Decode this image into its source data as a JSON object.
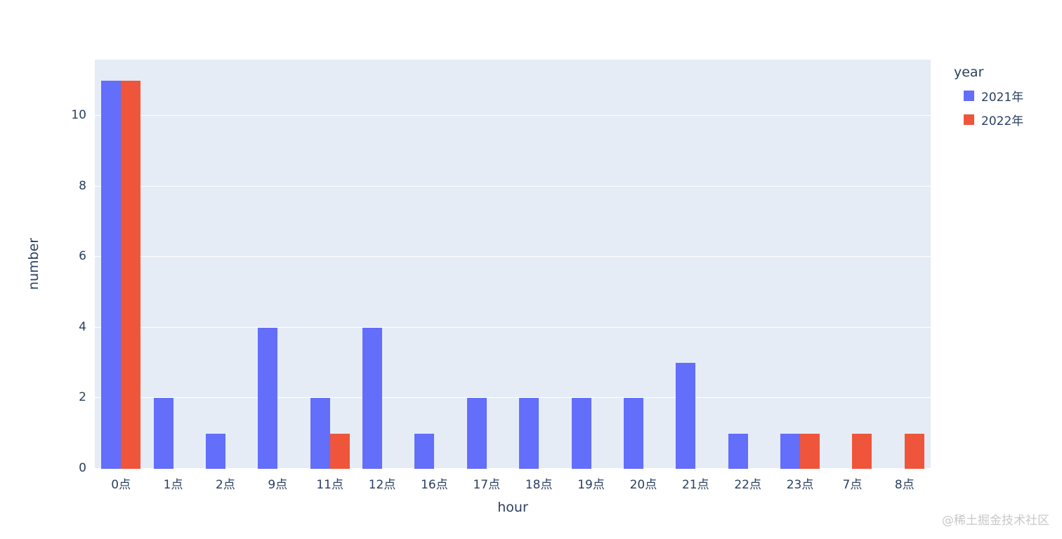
{
  "chart_data": {
    "type": "bar",
    "title": "",
    "xlabel": "hour",
    "ylabel": "number",
    "legend_title": "year",
    "categories": [
      "0点",
      "1点",
      "2点",
      "9点",
      "11点",
      "12点",
      "16点",
      "17点",
      "18点",
      "19点",
      "20点",
      "21点",
      "22点",
      "23点",
      "7点",
      "8点"
    ],
    "series": [
      {
        "name": "2021年",
        "color": "#636EFA",
        "values": [
          11,
          2,
          1,
          4,
          2,
          4,
          1,
          2,
          2,
          2,
          2,
          3,
          1,
          1,
          0,
          0
        ]
      },
      {
        "name": "2022年",
        "color": "#EF553B",
        "values": [
          11,
          0,
          0,
          0,
          1,
          0,
          0,
          0,
          0,
          0,
          0,
          0,
          0,
          1,
          1,
          1
        ]
      }
    ],
    "yticks": [
      0,
      2,
      4,
      6,
      8,
      10
    ],
    "ylim": [
      0,
      11.6
    ],
    "grid": "on",
    "legend_position": "top-right",
    "plot_bg_color": "#e5ecf6",
    "grid_color": "#ffffff",
    "text_color": "#2a3f5f"
  },
  "watermark": "@稀土掘金技术社区"
}
